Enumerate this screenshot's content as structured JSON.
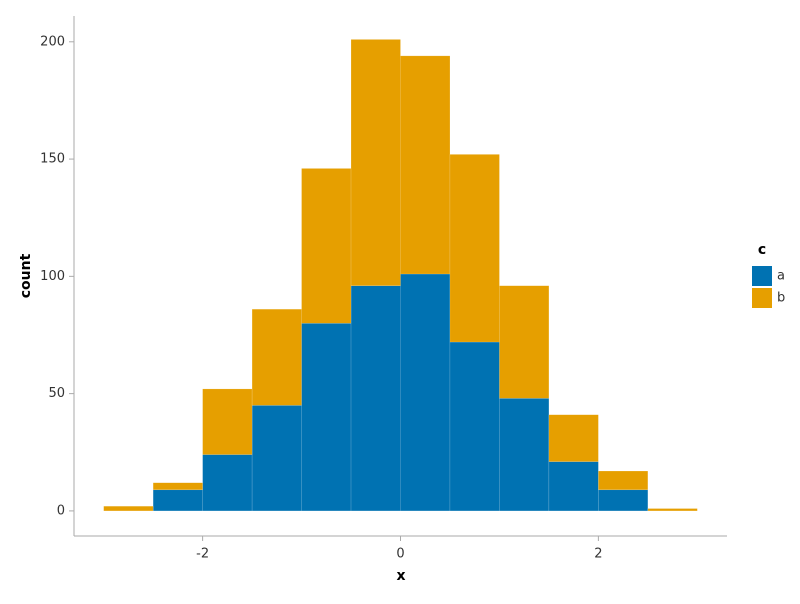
{
  "chart_data": {
    "type": "histogram",
    "x_label": "x",
    "y_label": "count",
    "bins": [
      -3,
      -2.5,
      -2,
      -1.5,
      -1,
      -0.5,
      0,
      0.5,
      1,
      1.5,
      2,
      2.5,
      3
    ],
    "stacked": true,
    "series": [
      {
        "name": "a",
        "color": "#0072b2",
        "values": [
          0,
          9,
          24,
          45,
          80,
          96,
          101,
          72,
          48,
          21,
          9,
          0
        ]
      },
      {
        "name": "b",
        "color": "#e69f00",
        "values": [
          2,
          3,
          28,
          41,
          66,
          105,
          93,
          80,
          48,
          20,
          8,
          1
        ]
      }
    ],
    "legend_title": "c",
    "legend_position": "right",
    "xlim": [
      -3.3,
      3.3
    ],
    "xticks": [
      -2,
      0,
      2
    ],
    "ylim": [
      -10.7,
      211
    ],
    "yticks": [
      0,
      50,
      100,
      150,
      200
    ],
    "grid": false
  }
}
